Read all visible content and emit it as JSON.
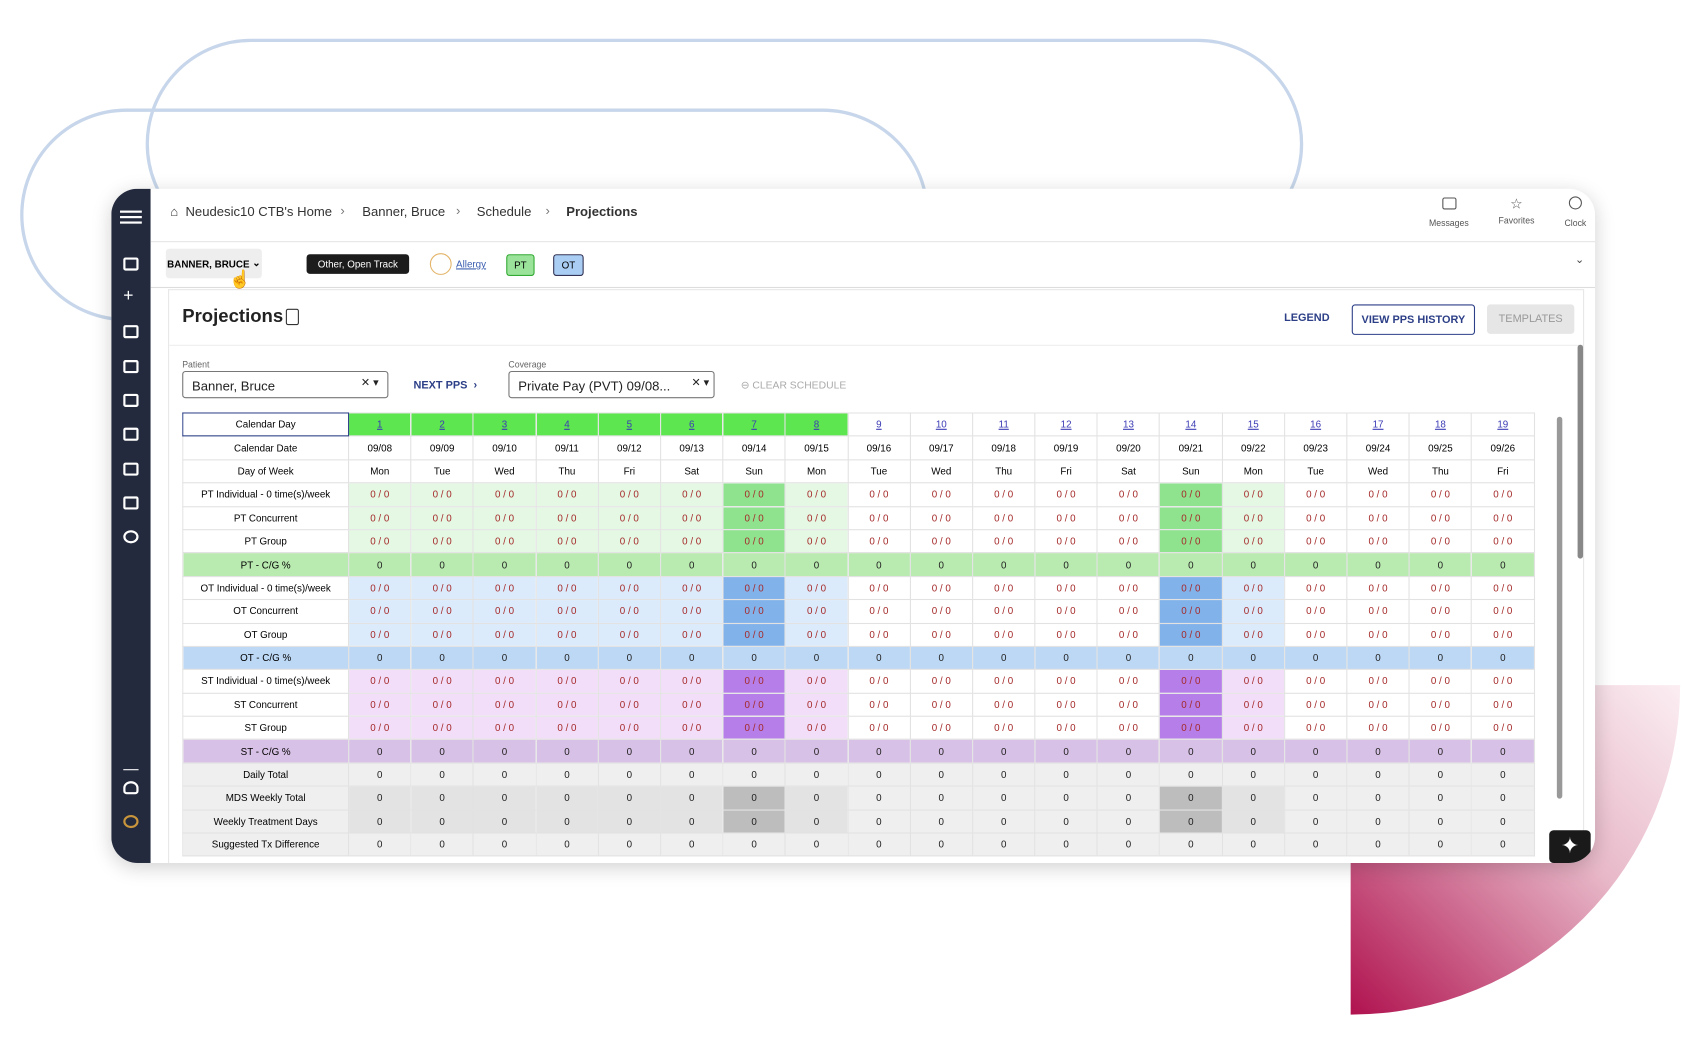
{
  "breadcrumbs": [
    "Neudesic10 CTB's Home",
    "Banner, Bruce",
    "Schedule",
    "Projections"
  ],
  "header_actions": [
    "Messages",
    "Favorites",
    "Clock"
  ],
  "patient_bar": {
    "patient_button": "BANNER, BRUCE",
    "payer_tag": "Other, Open Track",
    "allergy": "Allergy",
    "tags": [
      "PT",
      "OT"
    ]
  },
  "page": {
    "title": "Projections",
    "legend": "LEGEND",
    "view_pps_history": "VIEW PPS HISTORY",
    "templates": "TEMPLATES"
  },
  "form": {
    "patient_label": "Patient",
    "patient_value": "Banner, Bruce",
    "next_pps": "NEXT PPS",
    "coverage_label": "Coverage",
    "coverage_value": "Private Pay (PVT) 09/08...",
    "clear_schedule": "CLEAR SCHEDULE"
  },
  "table": {
    "header_labels": [
      "Calendar Day",
      "Calendar Date",
      "Day of Week"
    ],
    "days": [
      1,
      2,
      3,
      4,
      5,
      6,
      7,
      8,
      9,
      10,
      11,
      12,
      13,
      14,
      15,
      16,
      17,
      18,
      19
    ],
    "dates": [
      "09/08",
      "09/09",
      "09/10",
      "09/11",
      "09/12",
      "09/13",
      "09/14",
      "09/15",
      "09/16",
      "09/17",
      "09/18",
      "09/19",
      "09/20",
      "09/21",
      "09/22",
      "09/23",
      "09/24",
      "09/25",
      "09/26"
    ],
    "weekdays": [
      "Mon",
      "Tue",
      "Wed",
      "Thu",
      "Fri",
      "Sat",
      "Sun",
      "Mon",
      "Tue",
      "Wed",
      "Thu",
      "Fri",
      "Sat",
      "Sun",
      "Mon",
      "Tue",
      "Wed",
      "Thu",
      "Fri"
    ],
    "rows": [
      {
        "label": "PT Individual - 0 time(s)/week",
        "cells": [
          "0 / 0",
          "0 / 0",
          "0 / 0",
          "0 / 0",
          "0 / 0",
          "0 / 0",
          "0 / 0",
          "0 / 0",
          "0 / 0",
          "0 / 0",
          "0 / 0",
          "0 / 0",
          "0 / 0",
          "0 / 0",
          "0 / 0",
          "0 / 0",
          "0 / 0",
          "0 / 0",
          "0 / 0"
        ]
      },
      {
        "label": "PT Concurrent",
        "cells": [
          "0 / 0",
          "0 / 0",
          "0 / 0",
          "0 / 0",
          "0 / 0",
          "0 / 0",
          "0 / 0",
          "0 / 0",
          "0 / 0",
          "0 / 0",
          "0 / 0",
          "0 / 0",
          "0 / 0",
          "0 / 0",
          "0 / 0",
          "0 / 0",
          "0 / 0",
          "0 / 0",
          "0 / 0"
        ]
      },
      {
        "label": "PT Group",
        "cells": [
          "0 / 0",
          "0 / 0",
          "0 / 0",
          "0 / 0",
          "0 / 0",
          "0 / 0",
          "0 / 0",
          "0 / 0",
          "0 / 0",
          "0 / 0",
          "0 / 0",
          "0 / 0",
          "0 / 0",
          "0 / 0",
          "0 / 0",
          "0 / 0",
          "0 / 0",
          "0 / 0",
          "0 / 0"
        ]
      },
      {
        "label": "PT - C/G %",
        "cells": [
          0,
          0,
          0,
          0,
          0,
          0,
          0,
          0,
          0,
          0,
          0,
          0,
          0,
          0,
          0,
          0,
          0,
          0,
          0
        ]
      },
      {
        "label": "OT Individual - 0 time(s)/week",
        "cells": [
          "0 / 0",
          "0 / 0",
          "0 / 0",
          "0 / 0",
          "0 / 0",
          "0 / 0",
          "0 / 0",
          "0 / 0",
          "0 / 0",
          "0 / 0",
          "0 / 0",
          "0 / 0",
          "0 / 0",
          "0 / 0",
          "0 / 0",
          "0 / 0",
          "0 / 0",
          "0 / 0",
          "0 / 0"
        ]
      },
      {
        "label": "OT Concurrent",
        "cells": [
          "0 / 0",
          "0 / 0",
          "0 / 0",
          "0 / 0",
          "0 / 0",
          "0 / 0",
          "0 / 0",
          "0 / 0",
          "0 / 0",
          "0 / 0",
          "0 / 0",
          "0 / 0",
          "0 / 0",
          "0 / 0",
          "0 / 0",
          "0 / 0",
          "0 / 0",
          "0 / 0",
          "0 / 0"
        ]
      },
      {
        "label": "OT Group",
        "cells": [
          "0 / 0",
          "0 / 0",
          "0 / 0",
          "0 / 0",
          "0 / 0",
          "0 / 0",
          "0 / 0",
          "0 / 0",
          "0 / 0",
          "0 / 0",
          "0 / 0",
          "0 / 0",
          "0 / 0",
          "0 / 0",
          "0 / 0",
          "0 / 0",
          "0 / 0",
          "0 / 0",
          "0 / 0"
        ]
      },
      {
        "label": "OT - C/G %",
        "cells": [
          0,
          0,
          0,
          0,
          0,
          0,
          0,
          0,
          0,
          0,
          0,
          0,
          0,
          0,
          0,
          0,
          0,
          0,
          0
        ]
      },
      {
        "label": "ST Individual - 0 time(s)/week",
        "cells": [
          "0 / 0",
          "0 / 0",
          "0 / 0",
          "0 / 0",
          "0 / 0",
          "0 / 0",
          "0 / 0",
          "0 / 0",
          "0 / 0",
          "0 / 0",
          "0 / 0",
          "0 / 0",
          "0 / 0",
          "0 / 0",
          "0 / 0",
          "0 / 0",
          "0 / 0",
          "0 / 0",
          "0 / 0"
        ]
      },
      {
        "label": "ST Concurrent",
        "cells": [
          "0 / 0",
          "0 / 0",
          "0 / 0",
          "0 / 0",
          "0 / 0",
          "0 / 0",
          "0 / 0",
          "0 / 0",
          "0 / 0",
          "0 / 0",
          "0 / 0",
          "0 / 0",
          "0 / 0",
          "0 / 0",
          "0 / 0",
          "0 / 0",
          "0 / 0",
          "0 / 0",
          "0 / 0"
        ]
      },
      {
        "label": "ST Group",
        "cells": [
          "0 / 0",
          "0 / 0",
          "0 / 0",
          "0 / 0",
          "0 / 0",
          "0 / 0",
          "0 / 0",
          "0 / 0",
          "0 / 0",
          "0 / 0",
          "0 / 0",
          "0 / 0",
          "0 / 0",
          "0 / 0",
          "0 / 0",
          "0 / 0",
          "0 / 0",
          "0 / 0",
          "0 / 0"
        ]
      },
      {
        "label": "ST - C/G %",
        "cells": [
          0,
          0,
          0,
          0,
          0,
          0,
          0,
          0,
          0,
          0,
          0,
          0,
          0,
          0,
          0,
          0,
          0,
          0,
          0
        ]
      },
      {
        "label": "Daily Total",
        "cells": [
          0,
          0,
          0,
          0,
          0,
          0,
          0,
          0,
          0,
          0,
          0,
          0,
          0,
          0,
          0,
          0,
          0,
          0,
          0
        ]
      },
      {
        "label": "MDS Weekly Total",
        "cells": [
          0,
          0,
          0,
          0,
          0,
          0,
          0,
          0,
          0,
          0,
          0,
          0,
          0,
          0,
          0,
          0,
          0,
          0,
          0
        ]
      },
      {
        "label": "Weekly Treatment Days",
        "cells": [
          0,
          0,
          0,
          0,
          0,
          0,
          0,
          0,
          0,
          0,
          0,
          0,
          0,
          0,
          0,
          0,
          0,
          0,
          0
        ]
      },
      {
        "label": "Suggested Tx Difference",
        "cells": [
          0,
          0,
          0,
          0,
          0,
          0,
          0,
          0,
          0,
          0,
          0,
          0,
          0,
          0,
          0,
          0,
          0,
          0,
          0
        ]
      }
    ]
  }
}
